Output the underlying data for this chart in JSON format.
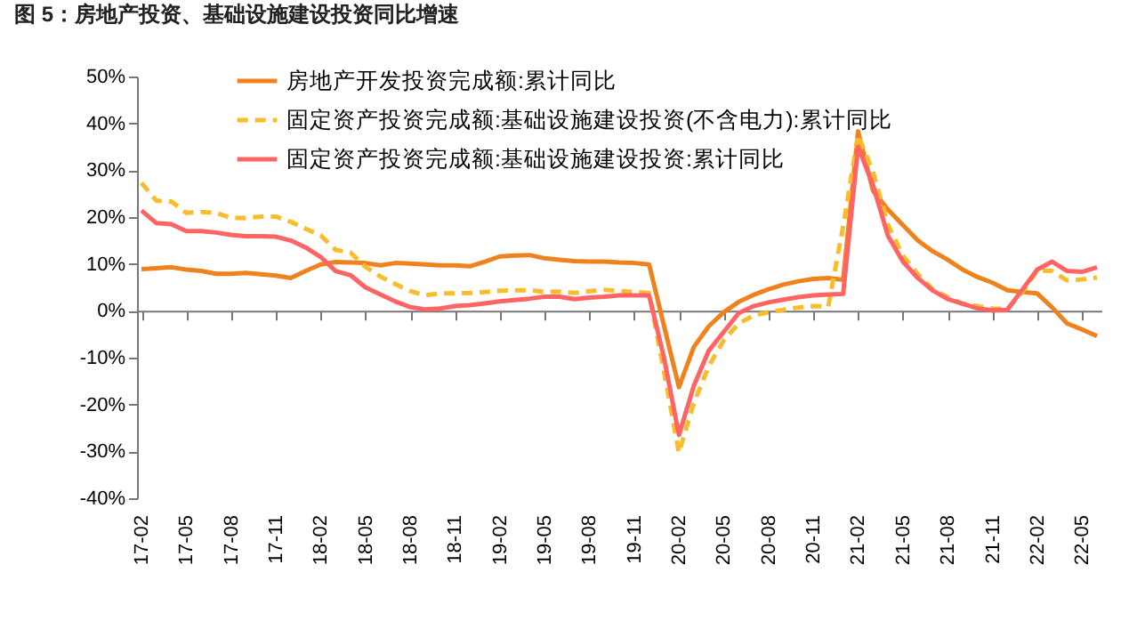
{
  "chart_data": {
    "type": "line",
    "title": "图 5：房地产投资、基础设施建设投资同比增速",
    "categories": [
      "17-02",
      null,
      null,
      "17-05",
      null,
      null,
      "17-08",
      null,
      null,
      "17-11",
      null,
      null,
      "18-02",
      null,
      null,
      "18-05",
      null,
      null,
      "18-08",
      null,
      null,
      "18-11",
      null,
      null,
      "19-02",
      null,
      null,
      "19-05",
      null,
      null,
      "19-08",
      null,
      null,
      "19-11",
      null,
      null,
      "20-02",
      null,
      null,
      "20-05",
      null,
      null,
      "20-08",
      null,
      null,
      "20-11",
      null,
      null,
      "21-02",
      null,
      null,
      "21-05",
      null,
      null,
      "21-08",
      null,
      null,
      "21-11",
      null,
      null,
      "22-02",
      null,
      null,
      "22-05",
      null
    ],
    "series": [
      {
        "name": "房地产开发投资完成额:累计同比",
        "color": "#f0821e",
        "line_style": "solid",
        "values": [
          8.9,
          9.1,
          9.3,
          8.8,
          8.5,
          7.9,
          7.9,
          8.1,
          7.8,
          7.5,
          7.0,
          8.5,
          9.9,
          10.4,
          10.3,
          10.2,
          9.7,
          10.2,
          10.1,
          9.9,
          9.7,
          9.7,
          9.5,
          10.5,
          11.6,
          11.8,
          11.9,
          11.2,
          10.9,
          10.6,
          10.5,
          10.5,
          10.3,
          10.2,
          9.9,
          -3.2,
          -16.3,
          -7.7,
          -3.3,
          -0.3,
          1.9,
          3.4,
          4.6,
          5.6,
          6.3,
          6.8,
          7.0,
          6.6,
          38.3,
          25.6,
          21.6,
          18.3,
          15.0,
          12.7,
          10.9,
          8.8,
          7.2,
          6.0,
          4.4,
          4.0,
          3.7,
          0.7,
          -2.7,
          -4.0,
          -5.4
        ]
      },
      {
        "name": "固定资产投资完成额:基础设施建设投资(不含电力):累计同比",
        "color": "#fbbc2c",
        "line_style": "dashed",
        "values": [
          27.3,
          23.5,
          23.3,
          20.9,
          21.1,
          20.9,
          19.8,
          19.8,
          20.1,
          20.1,
          19.0,
          17.5,
          16.1,
          13.0,
          12.4,
          9.4,
          7.3,
          5.7,
          4.2,
          3.3,
          3.7,
          3.7,
          3.8,
          4.0,
          4.3,
          4.4,
          4.4,
          4.0,
          4.1,
          3.8,
          4.2,
          4.5,
          4.2,
          4.0,
          3.8,
          -13.0,
          -30.3,
          -19.7,
          -11.8,
          -6.3,
          -2.7,
          -1.0,
          -0.3,
          0.2,
          0.7,
          1.0,
          0.9,
          18.0,
          37.5,
          29.7,
          18.4,
          11.8,
          7.8,
          4.6,
          2.9,
          1.5,
          1.0,
          0.5,
          0.4,
          4.0,
          8.6,
          8.5,
          6.5,
          6.7,
          7.1
        ]
      },
      {
        "name": "固定资产投资完成额:基础设施建设投资:累计同比",
        "color": "#ff6464",
        "line_style": "solid",
        "values": [
          21.4,
          18.7,
          18.5,
          17.0,
          17.0,
          16.7,
          16.2,
          15.9,
          15.9,
          15.8,
          15.0,
          13.5,
          11.5,
          8.5,
          7.6,
          5.0,
          3.5,
          2.0,
          0.8,
          0.3,
          0.5,
          1.0,
          1.2,
          1.6,
          2.0,
          2.3,
          2.6,
          3.0,
          3.0,
          2.5,
          2.8,
          3.0,
          3.3,
          3.3,
          3.3,
          -10.0,
          -26.5,
          -16.0,
          -8.5,
          -4.5,
          -0.5,
          1.0,
          1.8,
          2.4,
          2.9,
          3.3,
          3.5,
          3.6,
          35.0,
          26.8,
          16.0,
          10.5,
          7.0,
          4.3,
          2.5,
          1.5,
          0.5,
          0.1,
          0.2,
          4.5,
          8.8,
          10.5,
          8.5,
          8.3,
          9.3
        ]
      }
    ],
    "ylim": [
      -40,
      50
    ],
    "yticks": [
      {
        "value": -40,
        "label": "-40%"
      },
      {
        "value": -30,
        "label": "-30%"
      },
      {
        "value": -20,
        "label": "-20%"
      },
      {
        "value": -10,
        "label": "-10%"
      },
      {
        "value": 0,
        "label": "0%"
      },
      {
        "value": 10,
        "label": "10%"
      },
      {
        "value": 20,
        "label": "20%"
      },
      {
        "value": 30,
        "label": "30%"
      },
      {
        "value": 40,
        "label": "40%"
      },
      {
        "value": 50,
        "label": "50%"
      }
    ],
    "legend": "top"
  }
}
